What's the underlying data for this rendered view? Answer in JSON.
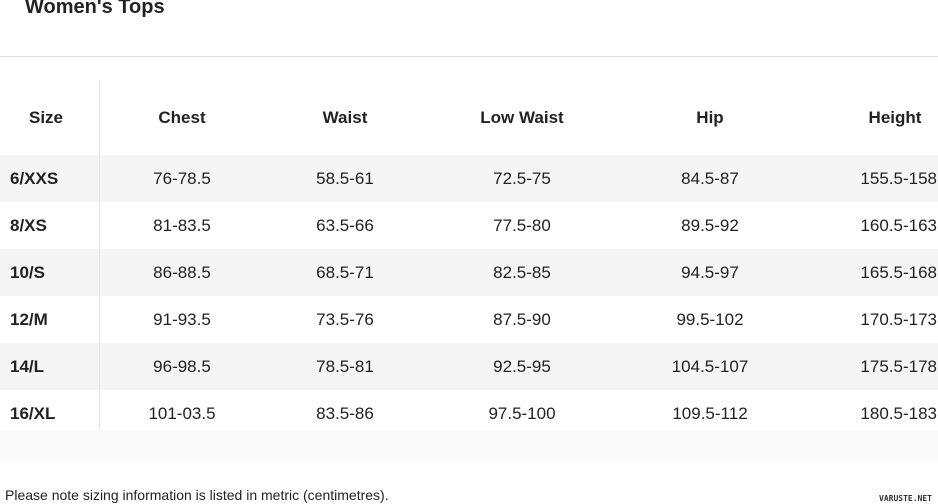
{
  "title": "Women's Tops",
  "headers": [
    "Size",
    "Chest",
    "Waist",
    "Low Waist",
    "Hip",
    "Height"
  ],
  "rows": [
    [
      "6/XXS",
      "76-78.5",
      "58.5-61",
      "72.5-75",
      "84.5-87",
      "155.5-158"
    ],
    [
      "8/XS",
      "81-83.5",
      "63.5-66",
      "77.5-80",
      "89.5-92",
      "160.5-163"
    ],
    [
      "10/S",
      "86-88.5",
      "68.5-71",
      "82.5-85",
      "94.5-97",
      "165.5-168"
    ],
    [
      "12/M",
      "91-93.5",
      "73.5-76",
      "87.5-90",
      "99.5-102",
      "170.5-173"
    ],
    [
      "14/L",
      "96-98.5",
      "78.5-81",
      "92.5-95",
      "104.5-107",
      "175.5-178"
    ],
    [
      "16/XL",
      "101-03.5",
      "83.5-86",
      "97.5-100",
      "109.5-112",
      "180.5-183"
    ]
  ],
  "note": "Please note sizing information is listed in metric (centimetres).",
  "watermark": "VARUSTE.NET"
}
